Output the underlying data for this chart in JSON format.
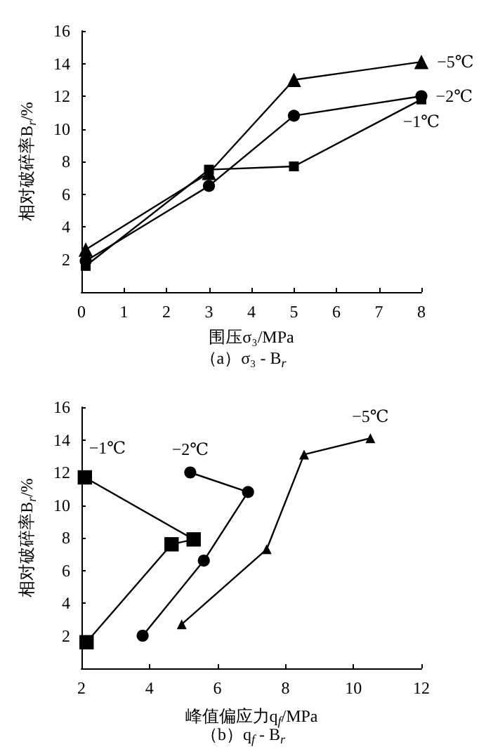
{
  "chart_data": [
    {
      "type": "line",
      "title": "（a）σ₃ - B$_{r}$",
      "xlabel": "围压σ₃/MPa",
      "ylabel": "相对破碎率B$_{r}$/%",
      "xlim": [
        0,
        8
      ],
      "xticks": [
        0,
        1,
        2,
        3,
        4,
        5,
        6,
        7,
        8
      ],
      "ylim": [
        0,
        16
      ],
      "yticks": [
        {
          "value": 0,
          "label": null
        },
        2,
        4,
        6,
        8,
        10,
        12,
        14,
        16
      ],
      "grid": false,
      "series": [
        {
          "name": "−5℃",
          "color": "#000000",
          "marker": "triangle",
          "x": [
            0.1,
            3,
            5,
            8
          ],
          "values": [
            2.6,
            7.3,
            13.0,
            14.1
          ]
        },
        {
          "name": "−2℃",
          "color": "#000000",
          "marker": "circle",
          "x": [
            0.1,
            3,
            5,
            8
          ],
          "values": [
            1.9,
            6.5,
            10.8,
            12.0
          ]
        },
        {
          "name": "−1℃",
          "color": "#000000",
          "marker": "square",
          "x": [
            0.1,
            3,
            5,
            8
          ],
          "values": [
            1.6,
            7.5,
            7.7,
            11.8
          ]
        }
      ]
    },
    {
      "type": "line",
      "title": "（b）q$_{f}$ - B$_{r}$",
      "xlabel": "峰值偏应力q$_{f}$/MPa",
      "ylabel": "相对破碎率B$_{r}$/%",
      "xlim": [
        2,
        12
      ],
      "xticks": [
        2,
        4,
        6,
        8,
        10,
        12
      ],
      "ylim": [
        0,
        16
      ],
      "yticks": [
        {
          "value": 0,
          "label": null
        },
        2,
        4,
        6,
        8,
        10,
        12,
        14,
        16
      ],
      "grid": false,
      "series": [
        {
          "name": "−1℃",
          "color": "#000000",
          "marker": "square",
          "x": [
            2.1,
            5.3,
            4.65,
            2.15
          ],
          "values": [
            11.7,
            7.9,
            7.6,
            1.6
          ]
        },
        {
          "name": "−2℃",
          "color": "#000000",
          "marker": "circle",
          "x": [
            5.2,
            6.9,
            5.6,
            3.8
          ],
          "values": [
            12.0,
            10.8,
            6.6,
            2.0
          ]
        },
        {
          "name": "−5℃",
          "color": "#000000",
          "marker": "triangle",
          "x": [
            10.5,
            8.55,
            7.45,
            4.95
          ],
          "values": [
            14.1,
            13.1,
            7.3,
            2.7
          ]
        }
      ]
    }
  ]
}
